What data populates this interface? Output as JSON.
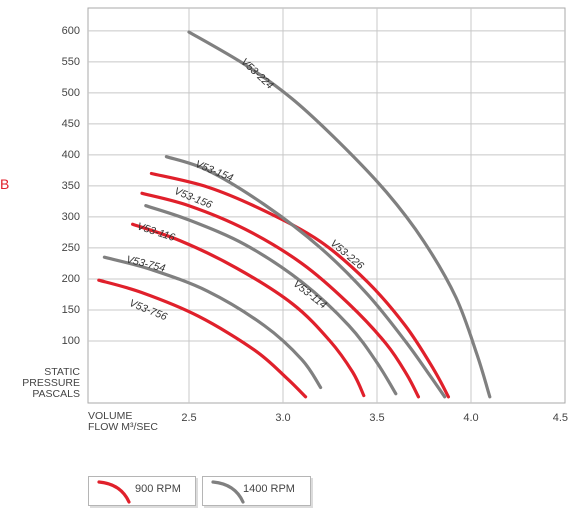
{
  "side_mark": "B",
  "chart_data": {
    "type": "line",
    "xlabel": [
      "VOLUME",
      "FLOW M³/SEC"
    ],
    "ylabel": [
      "STATIC",
      "PRESSURE",
      "PASCALS"
    ],
    "xlim": [
      2.0,
      4.5
    ],
    "ylim": [
      0,
      640
    ],
    "x_ticks": [
      "2.5",
      "3.0",
      "3.5",
      "4.0",
      "4.5"
    ],
    "y_ticks": [
      "100",
      "150",
      "200",
      "250",
      "300",
      "350",
      "400",
      "450",
      "500",
      "550",
      "600"
    ],
    "grid": true,
    "legend": [
      {
        "label": "900 RPM",
        "color": "#e0202b"
      },
      {
        "label": "1400 RPM",
        "color": "#808080"
      }
    ],
    "series": [
      {
        "name": "V53-224",
        "rpm": "1400 RPM",
        "color": "#808080",
        "x": [
          2.5,
          2.8,
          3.05,
          3.3,
          3.55,
          3.75,
          3.92,
          4.03,
          4.1
        ],
        "y": [
          598,
          545,
          490,
          420,
          340,
          260,
          170,
          80,
          10
        ]
      },
      {
        "name": "V53-226",
        "rpm": "900 RPM",
        "color": "#e0202b",
        "x": [
          2.3,
          2.6,
          2.9,
          3.2,
          3.45,
          3.65,
          3.8,
          3.88
        ],
        "y": [
          370,
          348,
          310,
          260,
          195,
          125,
          55,
          10
        ]
      },
      {
        "name": "V53-154",
        "rpm": "1400 RPM",
        "color": "#808080",
        "x": [
          2.38,
          2.6,
          2.9,
          3.2,
          3.45,
          3.65,
          3.78,
          3.86
        ],
        "y": [
          397,
          375,
          320,
          250,
          175,
          100,
          45,
          10
        ]
      },
      {
        "name": "V53-156",
        "rpm": "900 RPM",
        "color": "#e0202b",
        "x": [
          2.25,
          2.5,
          2.8,
          3.1,
          3.35,
          3.55,
          3.66,
          3.72
        ],
        "y": [
          338,
          318,
          280,
          225,
          160,
          95,
          45,
          10
        ]
      },
      {
        "name": "V53-114",
        "rpm": "1400 RPM",
        "color": "#808080",
        "x": [
          2.27,
          2.5,
          2.8,
          3.1,
          3.35,
          3.5,
          3.6
        ],
        "y": [
          318,
          295,
          255,
          195,
          125,
          65,
          15
        ]
      },
      {
        "name": "V53-116",
        "rpm": "900 RPM",
        "color": "#e0202b",
        "x": [
          2.2,
          2.45,
          2.75,
          3.05,
          3.25,
          3.37,
          3.43
        ],
        "y": [
          288,
          262,
          218,
          160,
          100,
          50,
          12
        ]
      },
      {
        "name": "V53-754",
        "rpm": "1400 RPM",
        "color": "#808080",
        "x": [
          2.05,
          2.3,
          2.6,
          2.9,
          3.1,
          3.2
        ],
        "y": [
          235,
          215,
          180,
          125,
          70,
          25
        ]
      },
      {
        "name": "V53-756",
        "rpm": "900 RPM",
        "color": "#e0202b",
        "x": [
          2.02,
          2.25,
          2.55,
          2.85,
          3.02,
          3.12
        ],
        "y": [
          198,
          178,
          140,
          85,
          40,
          10
        ]
      }
    ]
  }
}
